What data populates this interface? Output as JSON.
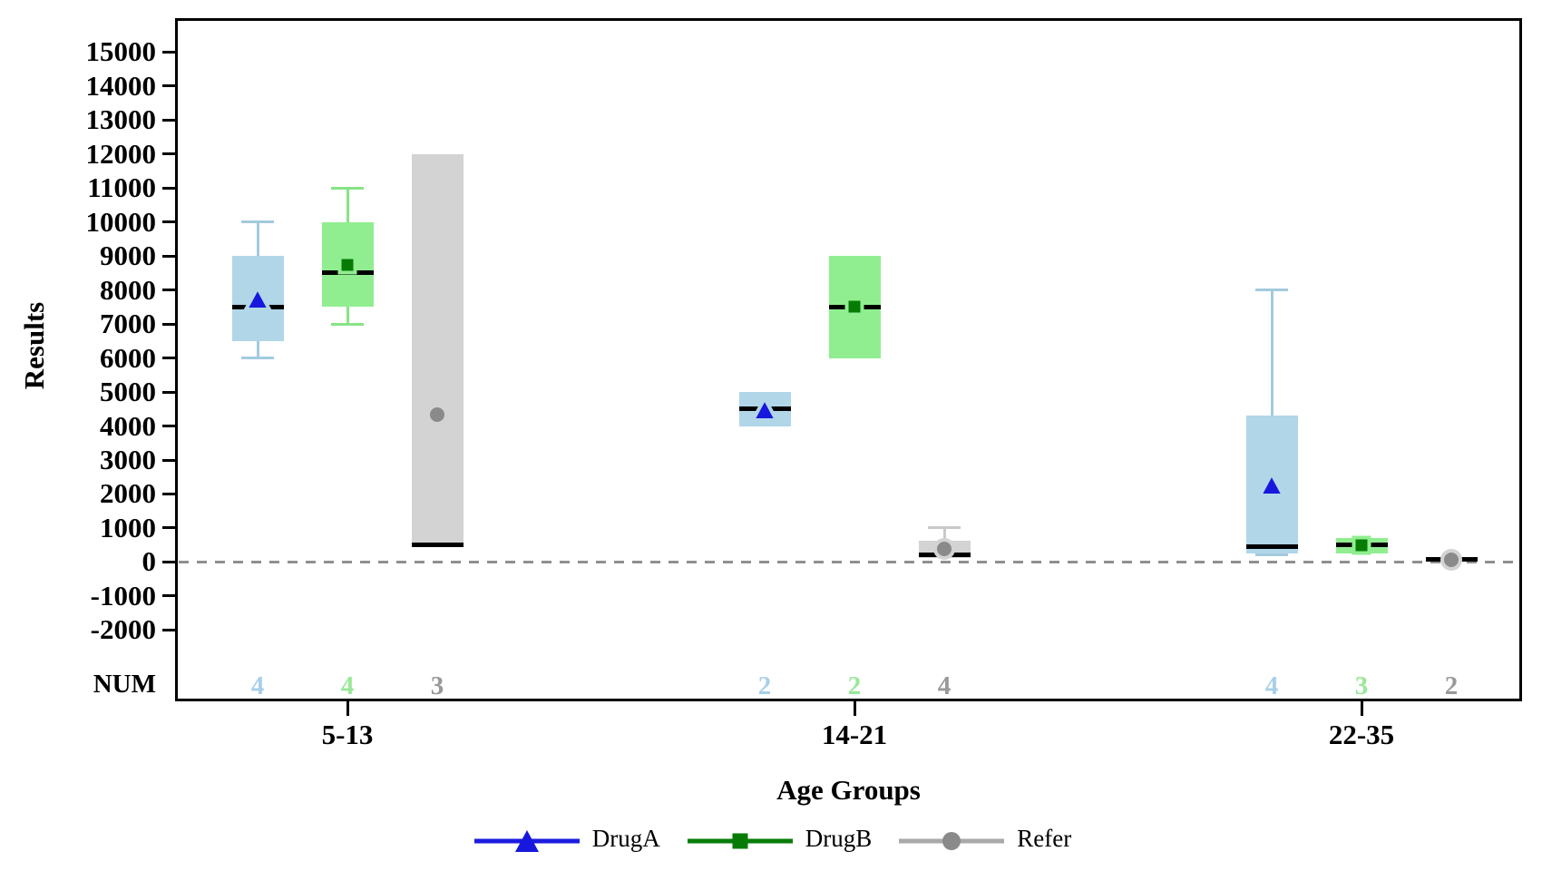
{
  "chart": {
    "y_axis_title": "Results",
    "x_axis_title": "Age Groups",
    "num_row_label": "NUM"
  },
  "chart_data": {
    "type": "grouped-boxplot",
    "title": "",
    "xlabel": "Age Groups",
    "ylabel": "Results",
    "categories": [
      "5-13",
      "14-21",
      "22-35"
    ],
    "y_axis": {
      "ticks": [
        15000,
        14000,
        13000,
        12000,
        11000,
        10000,
        9000,
        8000,
        7000,
        6000,
        5000,
        4000,
        3000,
        2000,
        1000,
        0,
        -1000,
        -2000
      ],
      "tick_step": 1000,
      "axis_top_value": 16000,
      "axis_bottom_value": -4100
    },
    "reference_line_y": 0,
    "reference_line_style": "dashed-gray",
    "counts_row_label": "NUM",
    "legend_position": "bottom-center",
    "grid": false,
    "series": [
      {
        "name": "DrugA",
        "marker": "triangle",
        "marker_color": "#1717dd",
        "line_color": "#1c1ce0",
        "fill": "#b0d6e8",
        "whisker_color": "#a3cade",
        "count_color": "#a8cfe8",
        "counts": [
          4,
          2,
          4
        ],
        "groups": [
          {
            "category": "5-13",
            "min": 6000,
            "q1": 6500,
            "median": 7500,
            "q3": 9000,
            "max": 10000,
            "mean": 7750,
            "n": 4
          },
          {
            "category": "14-21",
            "min": 4000,
            "q1": 4000,
            "median": 4500,
            "q3": 5000,
            "max": 5000,
            "mean": 4500,
            "n": 2
          },
          {
            "category": "22-35",
            "min": 200,
            "q1": 250,
            "median": 450,
            "q3": 4300,
            "max": 8000,
            "mean": 2275,
            "n": 4
          }
        ]
      },
      {
        "name": "DrugB",
        "marker": "square",
        "marker_color": "#067c06",
        "line_color": "#077d07",
        "fill": "#90ee90",
        "whisker_color": "#86e486",
        "count_color": "#98e898",
        "counts": [
          4,
          2,
          3
        ],
        "groups": [
          {
            "category": "5-13",
            "min": 7000,
            "q1": 7500,
            "median": 8500,
            "q3": 10000,
            "max": 11000,
            "mean": 8750,
            "n": 4
          },
          {
            "category": "14-21",
            "min": 6000,
            "q1": 6000,
            "median": 7500,
            "q3": 9000,
            "max": 9000,
            "mean": 7500,
            "n": 2
          },
          {
            "category": "22-35",
            "min": 250,
            "q1": 250,
            "median": 500,
            "q3": 700,
            "max": 700,
            "mean": 483,
            "n": 3
          }
        ]
      },
      {
        "name": "Refer",
        "marker": "circle",
        "marker_color": "#8a8a8a",
        "line_color": "#a9a9a9",
        "fill": "#d3d3d3",
        "whisker_color": "#c9c9c9",
        "count_color": "#999999",
        "counts": [
          3,
          4,
          2
        ],
        "groups": [
          {
            "category": "5-13",
            "min": 500,
            "q1": 500,
            "median": 500,
            "q3": 12000,
            "max": 12000,
            "mean": 4333,
            "n": 3
          },
          {
            "category": "14-21",
            "min": 100,
            "q1": 125,
            "median": 200,
            "q3": 625,
            "max": 1000,
            "mean": 375,
            "n": 4
          },
          {
            "category": "22-35",
            "min": 0,
            "q1": 0,
            "median": 75,
            "q3": 150,
            "max": 150,
            "mean": 75,
            "n": 2
          }
        ]
      }
    ]
  }
}
